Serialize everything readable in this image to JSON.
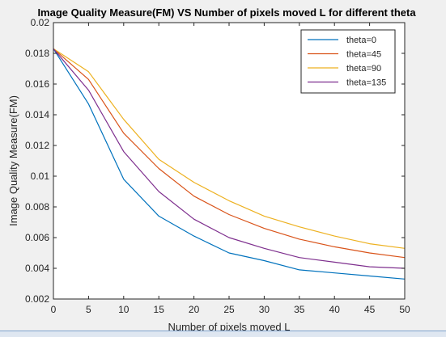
{
  "chart_data": {
    "type": "line",
    "title": "Image Quality Measure(FM) VS Number of pixels moved L for different theta",
    "xlabel": "Number of pixels moved L",
    "ylabel": "Image Quality Measure(FM)",
    "xlim": [
      0,
      50
    ],
    "ylim": [
      0.002,
      0.02
    ],
    "x_ticks": [
      0,
      5,
      10,
      15,
      20,
      25,
      30,
      35,
      40,
      45,
      50
    ],
    "y_ticks": [
      0.002,
      0.004,
      0.006,
      0.008,
      0.01,
      0.012,
      0.014,
      0.016,
      0.018,
      0.02
    ],
    "x_tick_labels": [
      "0",
      "5",
      "10",
      "15",
      "20",
      "25",
      "30",
      "35",
      "40",
      "45",
      "50"
    ],
    "y_tick_labels": [
      "0.002",
      "0.004",
      "0.006",
      "0.008",
      "0.01",
      "0.012",
      "0.014",
      "0.016",
      "0.018",
      "0.02"
    ],
    "grid": false,
    "legend_position": "top-right",
    "x": [
      0,
      5,
      10,
      15,
      20,
      25,
      30,
      35,
      40,
      45,
      50
    ],
    "series": [
      {
        "name": "theta=0",
        "color": "#0072bd",
        "values": [
          0.0183,
          0.0147,
          0.0098,
          0.0074,
          0.0061,
          0.005,
          0.0045,
          0.0039,
          0.0037,
          0.0035,
          0.0033
        ]
      },
      {
        "name": "theta=45",
        "color": "#d95319",
        "values": [
          0.0183,
          0.0163,
          0.0128,
          0.0105,
          0.0087,
          0.0075,
          0.0066,
          0.0059,
          0.0054,
          0.005,
          0.0047
        ]
      },
      {
        "name": "theta=90",
        "color": "#edb120",
        "values": [
          0.0183,
          0.0168,
          0.0137,
          0.0111,
          0.0096,
          0.0084,
          0.0074,
          0.0067,
          0.0061,
          0.0056,
          0.0053
        ]
      },
      {
        "name": "theta=135",
        "color": "#7e2f8e",
        "values": [
          0.0183,
          0.0156,
          0.0116,
          0.009,
          0.0072,
          0.006,
          0.0053,
          0.0047,
          0.0044,
          0.0041,
          0.004
        ]
      }
    ]
  }
}
